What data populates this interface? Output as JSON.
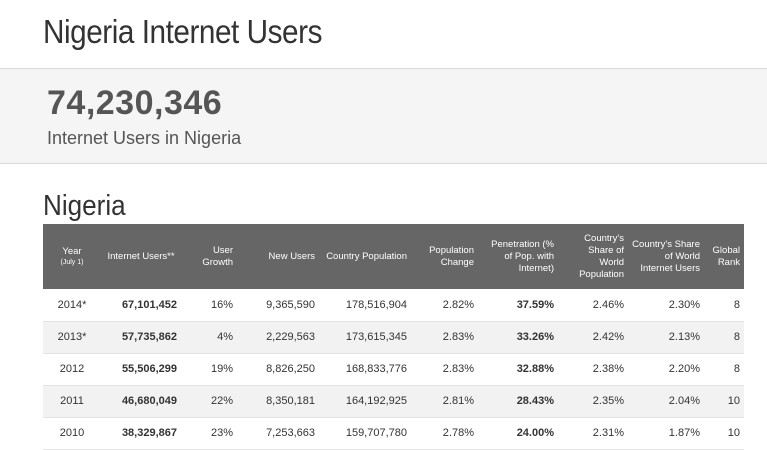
{
  "page": {
    "title": "Nigeria Internet Users"
  },
  "hero": {
    "number": "74,230,346",
    "caption": "Internet Users in Nigeria"
  },
  "section": {
    "title": "Nigeria"
  },
  "table": {
    "headers": {
      "year": "Year",
      "year_sub": "(July 1)",
      "internet_users": "Internet Users**",
      "user_growth": "User Growth",
      "new_users": "New Users",
      "country_population": "Country Population",
      "population_change": "Population Change",
      "penetration": "Penetration (% of Pop. with Internet)",
      "share_world_pop": "Country's Share of World Population",
      "share_world_internet": "Country's Share of World Internet Users",
      "global_rank": "Global Rank"
    },
    "rows": [
      {
        "year": "2014*",
        "internet_users": "67,101,452",
        "user_growth": "16%",
        "new_users": "9,365,590",
        "country_population": "178,516,904",
        "population_change": "2.82%",
        "penetration": "37.59%",
        "share_world_pop": "2.46%",
        "share_world_internet": "2.30%",
        "global_rank": "8"
      },
      {
        "year": "2013*",
        "internet_users": "57,735,862",
        "user_growth": "4%",
        "new_users": "2,229,563",
        "country_population": "173,615,345",
        "population_change": "2.83%",
        "penetration": "33.26%",
        "share_world_pop": "2.42%",
        "share_world_internet": "2.13%",
        "global_rank": "8"
      },
      {
        "year": "2012",
        "internet_users": "55,506,299",
        "user_growth": "19%",
        "new_users": "8,826,250",
        "country_population": "168,833,776",
        "population_change": "2.83%",
        "penetration": "32.88%",
        "share_world_pop": "2.38%",
        "share_world_internet": "2.20%",
        "global_rank": "8"
      },
      {
        "year": "2011",
        "internet_users": "46,680,049",
        "user_growth": "22%",
        "new_users": "8,350,181",
        "country_population": "164,192,925",
        "population_change": "2.81%",
        "penetration": "28.43%",
        "share_world_pop": "2.35%",
        "share_world_internet": "2.04%",
        "global_rank": "10"
      },
      {
        "year": "2010",
        "internet_users": "38,329,867",
        "user_growth": "23%",
        "new_users": "7,253,663",
        "country_population": "159,707,780",
        "population_change": "2.78%",
        "penetration": "24.00%",
        "share_world_pop": "2.31%",
        "share_world_internet": "1.87%",
        "global_rank": "10"
      }
    ]
  }
}
